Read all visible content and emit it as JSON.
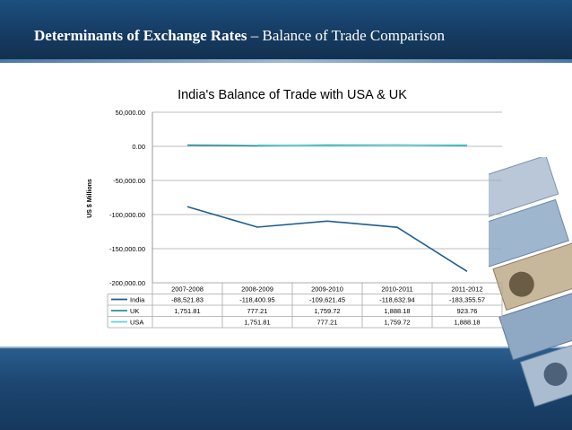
{
  "slide": {
    "title_bold": "Determinants of Exchange Rates",
    "title_rest": " – Balance of Trade Comparison"
  },
  "colors": {
    "header": "#1a4672",
    "india": "#1f5e91",
    "uk": "#27939a",
    "usa": "#5fd0d6"
  },
  "decoration": {
    "description_icon": "banknotes-icon"
  },
  "chart_data": {
    "type": "line",
    "title": "India's Balance of Trade with USA & UK",
    "xlabel": "",
    "ylabel": "US $ Millions",
    "ylim": [
      -200000,
      50000
    ],
    "y_ticks": [
      "50,000.00",
      "0.00",
      "-50,000.00",
      "-100,000.00",
      "-150,000.00",
      "-200,000.00"
    ],
    "y_tick_values": [
      50000,
      0,
      -50000,
      -100000,
      -150000,
      -200000
    ],
    "grid": true,
    "legend": "bottom-table",
    "categories": [
      "2007-2008",
      "2008-2009",
      "2009-2010",
      "2010-2011",
      "2011-2012"
    ],
    "series": [
      {
        "name": "India",
        "values": [
          -88521.83,
          -118400.95,
          -109621.45,
          -118632.94,
          -183355.57
        ],
        "labels": [
          "-88,521.83",
          "-118,400.95",
          "-109,621.45",
          "-118,632.94",
          "-183,355.57"
        ]
      },
      {
        "name": "UK",
        "values": [
          1751.81,
          777.21,
          1759.72,
          1888.18,
          923.76
        ],
        "labels": [
          "1,751.81",
          "777.21",
          "1,759.72",
          "1,888.18",
          "923.76"
        ]
      },
      {
        "name": "USA",
        "values": [
          null,
          1751.81,
          777.21,
          1759.72,
          1888.18
        ],
        "labels": [
          "",
          "1,751.81",
          "777.21",
          "1,759.72",
          "1,888.18"
        ]
      }
    ]
  }
}
